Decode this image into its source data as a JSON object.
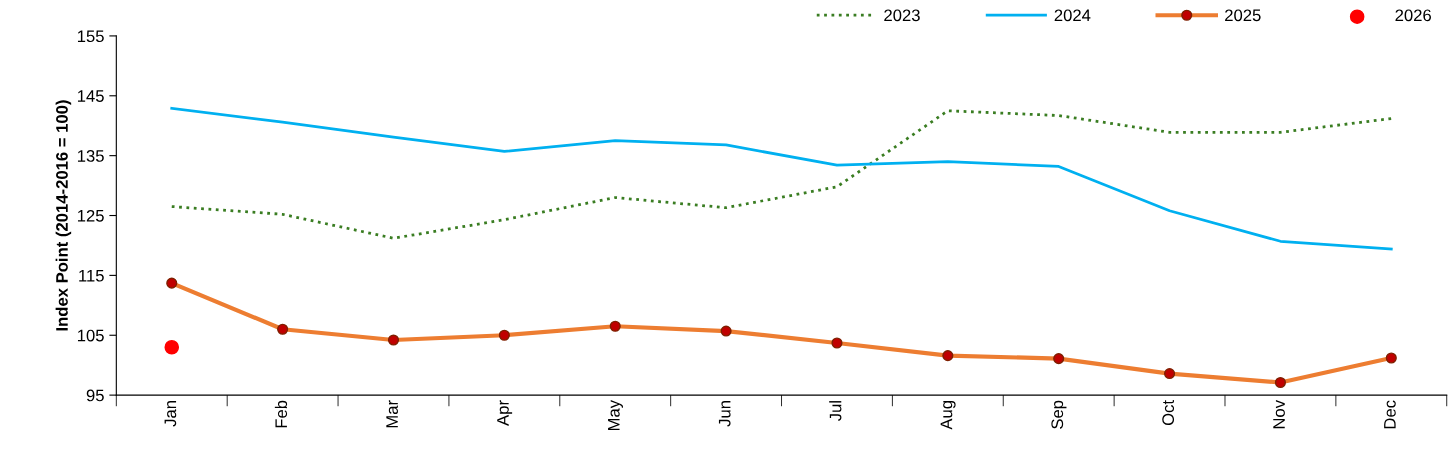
{
  "chart_data": {
    "type": "line",
    "ylabel": "Index Point (2014-2016 = 100)",
    "categories": [
      "Jan",
      "Feb",
      "Mar",
      "Apr",
      "May",
      "Jun",
      "Jul",
      "Aug",
      "Sep",
      "Oct",
      "Nov",
      "Dec"
    ],
    "ylim": [
      95,
      155
    ],
    "yticks": [
      95,
      105,
      115,
      125,
      135,
      145,
      155
    ],
    "grid": false,
    "legend": "top right",
    "series": [
      {
        "name": "2023",
        "type": "line",
        "color": "#3a7d22",
        "line_style": "dotted",
        "marker": "none",
        "values": [
          126.5,
          125.2,
          121.2,
          124.3,
          128.0,
          126.3,
          129.8,
          142.5,
          141.7,
          138.9,
          138.9,
          141.2
        ]
      },
      {
        "name": "2024",
        "type": "line",
        "color": "#00b0f0",
        "line_style": "solid",
        "marker": "none",
        "values": [
          142.9,
          140.6,
          138.1,
          135.7,
          137.5,
          136.8,
          133.4,
          134.0,
          133.2,
          125.8,
          120.7,
          119.4
        ]
      },
      {
        "name": "2025",
        "type": "line",
        "color": "#ed7d31",
        "line_style": "solid",
        "marker": "circle",
        "values": [
          113.7,
          106.0,
          104.2,
          105.0,
          106.5,
          105.7,
          103.7,
          101.6,
          101.1,
          98.6,
          97.1,
          101.2
        ]
      },
      {
        "name": "2026",
        "type": "scatter",
        "color": "#ff0000",
        "marker": "circle",
        "values": [
          103.0,
          null,
          null,
          null,
          null,
          null,
          null,
          null,
          null,
          null,
          null,
          null
        ]
      }
    ]
  }
}
